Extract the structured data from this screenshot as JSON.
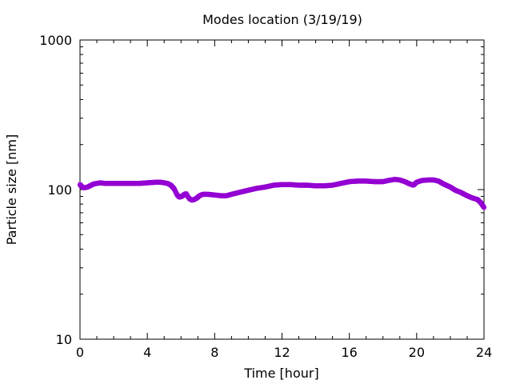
{
  "chart_data": {
    "type": "scatter",
    "title": "Modes location (3/19/19)",
    "xlabel": "Time [hour]",
    "ylabel": "Particle size [nm]",
    "xlim": [
      0,
      24
    ],
    "ylim": [
      10,
      1000
    ],
    "yscale": "log",
    "x_ticks": [
      0,
      4,
      8,
      12,
      16,
      20,
      24
    ],
    "x_tick_labels": [
      "0",
      "4",
      "8",
      "12",
      "16",
      "20",
      "24"
    ],
    "y_ticks": [
      10,
      100,
      1000
    ],
    "y_tick_labels": [
      "10",
      "100",
      "1000"
    ],
    "grid": false,
    "marker": "star",
    "series": [
      {
        "color": "#9400d3",
        "points": [
          [
            0.0,
            108
          ],
          [
            0.1,
            105
          ],
          [
            0.2,
            103
          ],
          [
            0.3,
            103
          ],
          [
            0.45,
            104
          ],
          [
            0.6,
            106
          ],
          [
            0.8,
            109
          ],
          [
            1.0,
            110
          ],
          [
            1.2,
            111
          ],
          [
            1.5,
            110
          ],
          [
            2.0,
            110
          ],
          [
            2.5,
            110
          ],
          [
            3.0,
            110
          ],
          [
            3.5,
            110
          ],
          [
            4.0,
            111
          ],
          [
            4.5,
            112
          ],
          [
            4.8,
            112
          ],
          [
            5.0,
            111
          ],
          [
            5.2,
            110
          ],
          [
            5.4,
            107
          ],
          [
            5.6,
            101
          ],
          [
            5.75,
            93
          ],
          [
            5.9,
            89
          ],
          [
            6.05,
            90
          ],
          [
            6.2,
            93
          ],
          [
            6.3,
            94
          ],
          [
            6.4,
            90
          ],
          [
            6.5,
            87
          ],
          [
            6.65,
            85
          ],
          [
            6.8,
            86
          ],
          [
            6.95,
            88
          ],
          [
            7.1,
            91
          ],
          [
            7.3,
            93
          ],
          [
            7.6,
            93
          ],
          [
            8.0,
            92
          ],
          [
            8.4,
            91
          ],
          [
            8.7,
            91
          ],
          [
            9.0,
            93
          ],
          [
            9.5,
            96
          ],
          [
            10.0,
            99
          ],
          [
            10.5,
            102
          ],
          [
            11.0,
            104
          ],
          [
            11.5,
            107
          ],
          [
            12.0,
            108
          ],
          [
            12.5,
            108
          ],
          [
            13.0,
            107
          ],
          [
            13.5,
            107
          ],
          [
            14.0,
            106
          ],
          [
            14.5,
            106
          ],
          [
            15.0,
            107
          ],
          [
            15.5,
            110
          ],
          [
            16.0,
            113
          ],
          [
            16.5,
            114
          ],
          [
            17.0,
            114
          ],
          [
            17.5,
            113
          ],
          [
            18.0,
            113
          ],
          [
            18.3,
            115
          ],
          [
            18.7,
            117
          ],
          [
            19.0,
            116
          ],
          [
            19.3,
            113
          ],
          [
            19.6,
            109
          ],
          [
            19.8,
            107
          ],
          [
            20.0,
            112
          ],
          [
            20.3,
            115
          ],
          [
            20.7,
            116
          ],
          [
            21.0,
            116
          ],
          [
            21.3,
            114
          ],
          [
            21.6,
            109
          ],
          [
            22.0,
            104
          ],
          [
            22.3,
            99
          ],
          [
            22.6,
            96
          ],
          [
            23.0,
            91
          ],
          [
            23.3,
            88
          ],
          [
            23.6,
            86
          ],
          [
            23.8,
            82
          ],
          [
            24.0,
            76
          ]
        ]
      }
    ]
  }
}
